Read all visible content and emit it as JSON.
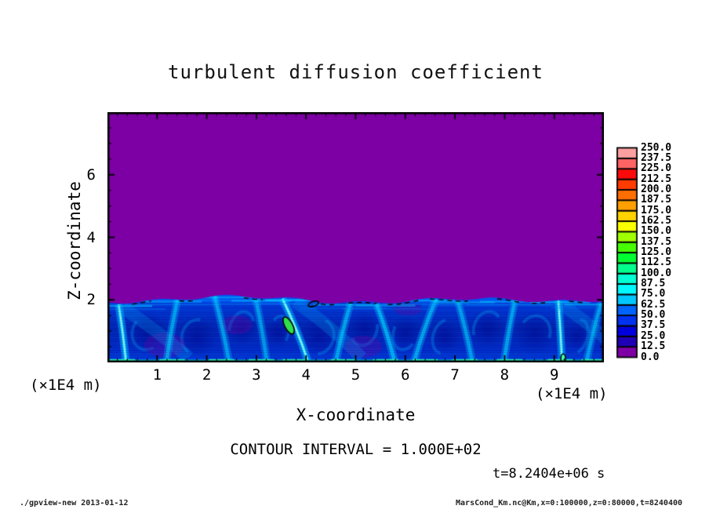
{
  "figure": {
    "title": "turbulent diffusion coefficient",
    "contour_note": "CONTOUR INTERVAL = 1.000E+02",
    "time_label": "t=8.2404e+06 s",
    "footer_left": "./gpview-new  2013-01-12",
    "footer_right": "MarsCond_Km.nc@Km,x=0:100000,z=0:80000,t=8240400"
  },
  "chart_data": {
    "type": "heatmap",
    "title": "turbulent diffusion coefficient",
    "xlabel": "X-coordinate",
    "x_unit": "(×1E4 m)",
    "zlabel": "Z-coordinate",
    "z_unit": "(×1E4 m)",
    "x": {
      "range": [
        0,
        10
      ],
      "major_ticks": [
        1,
        2,
        3,
        4,
        5,
        6,
        7,
        8,
        9
      ],
      "minor_step": 0.2
    },
    "z": {
      "range": [
        0,
        8
      ],
      "major_ticks": [
        2,
        4,
        6
      ],
      "minor_step": 0.5
    },
    "levels": [
      0,
      12.5,
      25,
      37.5,
      50,
      62.5,
      75,
      87.5,
      100,
      112.5,
      125,
      137.5,
      150,
      162.5,
      175,
      187.5,
      200,
      212.5,
      225,
      237.5,
      250
    ],
    "colorbar_labels": [
      "250.0",
      "237.5",
      "225.0",
      "212.5",
      "200.0",
      "187.5",
      "175.0",
      "162.5",
      "150.0",
      "137.5",
      "125.0",
      "112.5",
      "100.0",
      "87.5",
      "75.0",
      "62.5",
      "50.0",
      "37.5",
      "25.0",
      "12.5",
      "0.0"
    ],
    "palette": [
      "#7D00A5",
      "#2000B4",
      "#0000DC",
      "#0032F0",
      "#0064FF",
      "#00C8FF",
      "#00FAFF",
      "#00FFD2",
      "#00FF8C",
      "#00FF32",
      "#46FF00",
      "#A0FF00",
      "#FAFF00",
      "#FFD200",
      "#FFA000",
      "#FF6E00",
      "#FF3C00",
      "#FF0A0A",
      "#FF6464",
      "#FFA0A0"
    ],
    "contour_interval": 100,
    "time_seconds": 8240400,
    "grid": false,
    "legend_position": "right-colorbar",
    "field": {
      "description": "Uniform lowest bin (0-12.5, purple) everywhere above z~2x1E4 m; convective mixed layer below z~2 with values ~12.5-100 (blues and cyans), rising plumes, and pockets exceeding 100 outlined by black 100-level contour fragments near the layer top and at plume heads",
      "upper_color": "#7D00A5",
      "mixed_layer_top_z": 2.0,
      "plumes": [
        {
          "x": 0.3,
          "t": 0.1,
          "s": 1.0
        },
        {
          "x": 1.3,
          "t": -0.15,
          "s": 0.55
        },
        {
          "x": 2.3,
          "t": 0.2,
          "s": 0.5
        },
        {
          "x": 3.1,
          "t": 0.15,
          "s": 0.45
        },
        {
          "x": 3.78,
          "t": 0.35,
          "s": 1.0
        },
        {
          "x": 4.75,
          "t": -0.2,
          "s": 0.6
        },
        {
          "x": 5.6,
          "t": 0.25,
          "s": 0.7
        },
        {
          "x": 6.4,
          "t": -0.3,
          "s": 0.6
        },
        {
          "x": 7.2,
          "t": 0.2,
          "s": 0.5
        },
        {
          "x": 8.1,
          "t": -0.15,
          "s": 0.55
        },
        {
          "x": 9.12,
          "t": 0.05,
          "s": 0.95
        },
        {
          "x": 9.8,
          "t": -0.2,
          "s": 0.5
        }
      ],
      "low_patches": [
        [
          1.15,
          0.55,
          26,
          16
        ],
        [
          2.6,
          1.2,
          20,
          12
        ],
        [
          5.15,
          0.5,
          24,
          14
        ],
        [
          6.05,
          1.7,
          18,
          8
        ]
      ],
      "contour_dashes": [
        [
          0.5,
          0.9
        ],
        [
          1.45,
          1.8
        ],
        [
          2.75,
          3.15
        ],
        [
          4.3,
          4.6
        ],
        [
          4.85,
          5.45
        ],
        [
          5.65,
          6.35
        ],
        [
          6.5,
          7.3
        ],
        [
          7.85,
          8.35
        ],
        [
          8.55,
          8.85
        ],
        [
          9.3,
          9.6
        ]
      ],
      "contour_blobs": [
        {
          "x": 3.65,
          "z": 1.18,
          "rx": 5,
          "ry": 12,
          "rot": -28,
          "fill": "#2FE04C"
        },
        {
          "x": 4.15,
          "z": 1.87,
          "rx": 7,
          "ry": 3,
          "rot": -20,
          "fill": null
        },
        {
          "x": 9.18,
          "z": 0.12,
          "rx": 3,
          "ry": 6,
          "rot": 0,
          "fill": "#40FFB0"
        }
      ]
    }
  }
}
